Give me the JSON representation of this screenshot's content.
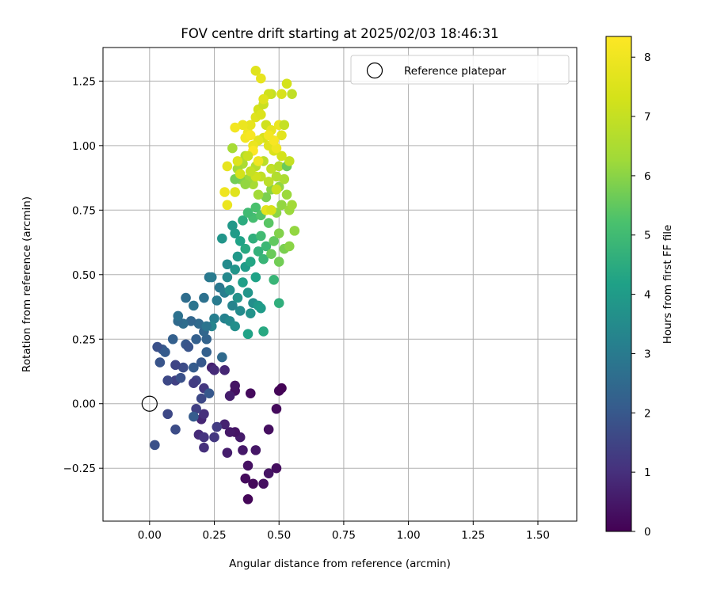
{
  "chart_data": {
    "type": "scatter",
    "title": "FOV centre drift starting at 2025/02/03 18:46:31",
    "xlabel": "Angular distance from reference (arcmin)",
    "ylabel": "Rotation from reference (arcmin)",
    "xlim": [
      -0.18,
      1.65
    ],
    "ylim": [
      -0.455,
      1.38
    ],
    "xticks": [
      0.0,
      0.25,
      0.5,
      0.75,
      1.0,
      1.25,
      1.5
    ],
    "xtick_labels": [
      "0.00",
      "0.25",
      "0.50",
      "0.75",
      "1.00",
      "1.25",
      "1.50"
    ],
    "yticks": [
      -0.25,
      0.0,
      0.25,
      0.5,
      0.75,
      1.0,
      1.25
    ],
    "ytick_labels": [
      "−0.25",
      "0.00",
      "0.25",
      "0.50",
      "0.75",
      "1.00",
      "1.25"
    ],
    "grid": true,
    "legend": {
      "position": "top-right",
      "entries": [
        {
          "label": "Reference platepar",
          "marker": "open-circle",
          "color": "#000000"
        }
      ]
    },
    "reference_point": {
      "x": 0.0,
      "y": 0.0
    },
    "colorbar": {
      "label": "Hours from first FF file",
      "colormap": "viridis",
      "range": [
        0,
        8.35
      ],
      "ticks": [
        0,
        1,
        2,
        3,
        4,
        5,
        6,
        7,
        8
      ],
      "tick_labels": [
        "0",
        "1",
        "2",
        "3",
        "4",
        "5",
        "6",
        "7",
        "8"
      ]
    },
    "series": [
      {
        "value_fields": [
          "x",
          "y",
          "hours"
        ],
        "points": [
          [
            0.38,
            -0.37,
            0.1
          ],
          [
            0.37,
            -0.29,
            0.2
          ],
          [
            0.4,
            -0.31,
            0.15
          ],
          [
            0.44,
            -0.31,
            0.3
          ],
          [
            0.46,
            -0.27,
            0.4
          ],
          [
            0.49,
            -0.25,
            0.25
          ],
          [
            0.38,
            -0.24,
            0.35
          ],
          [
            0.36,
            -0.18,
            0.5
          ],
          [
            0.41,
            -0.18,
            0.45
          ],
          [
            0.3,
            -0.19,
            0.6
          ],
          [
            0.35,
            -0.13,
            0.55
          ],
          [
            0.33,
            -0.11,
            0.4
          ],
          [
            0.31,
            -0.11,
            0.5
          ],
          [
            0.29,
            -0.08,
            0.7
          ],
          [
            0.46,
            -0.1,
            0.3
          ],
          [
            0.49,
            -0.02,
            0.2
          ],
          [
            0.5,
            0.05,
            0.1
          ],
          [
            0.51,
            0.06,
            0.05
          ],
          [
            0.39,
            0.04,
            0.2
          ],
          [
            0.33,
            0.05,
            0.3
          ],
          [
            0.33,
            0.07,
            0.4
          ],
          [
            0.31,
            0.03,
            0.6
          ],
          [
            0.29,
            0.13,
            0.8
          ],
          [
            0.24,
            0.14,
            0.7
          ],
          [
            0.25,
            0.13,
            0.9
          ],
          [
            0.2,
            -0.06,
            0.8
          ],
          [
            0.21,
            -0.04,
            1.0
          ],
          [
            0.19,
            -0.12,
            0.9
          ],
          [
            0.21,
            -0.13,
            1.1
          ],
          [
            0.21,
            -0.17,
            1.0
          ],
          [
            0.25,
            -0.13,
            1.2
          ],
          [
            0.26,
            -0.09,
            1.3
          ],
          [
            0.18,
            -0.02,
            1.4
          ],
          [
            0.2,
            0.02,
            1.6
          ],
          [
            0.21,
            0.06,
            1.2
          ],
          [
            0.18,
            0.09,
            1.5
          ],
          [
            0.17,
            0.08,
            1.3
          ],
          [
            0.1,
            0.09,
            1.4
          ],
          [
            0.07,
            0.09,
            1.6
          ],
          [
            0.12,
            0.1,
            1.8
          ],
          [
            0.13,
            0.14,
            1.7
          ],
          [
            0.1,
            0.15,
            1.5
          ],
          [
            0.04,
            0.16,
            1.9
          ],
          [
            0.05,
            0.21,
            2.0
          ],
          [
            0.03,
            0.22,
            1.8
          ],
          [
            0.06,
            0.2,
            2.1
          ],
          [
            0.09,
            0.25,
            2.2
          ],
          [
            0.14,
            0.23,
            2.0
          ],
          [
            0.15,
            0.22,
            1.9
          ],
          [
            0.17,
            0.14,
            2.1
          ],
          [
            0.2,
            0.16,
            2.0
          ],
          [
            0.22,
            0.2,
            2.2
          ],
          [
            0.22,
            0.25,
            2.3
          ],
          [
            0.21,
            0.28,
            2.4
          ],
          [
            0.18,
            0.25,
            2.2
          ],
          [
            0.19,
            0.31,
            2.5
          ],
          [
            0.16,
            0.32,
            2.4
          ],
          [
            0.13,
            0.31,
            2.6
          ],
          [
            0.11,
            0.32,
            2.5
          ],
          [
            0.11,
            0.34,
            2.7
          ],
          [
            0.14,
            0.41,
            2.6
          ],
          [
            0.17,
            0.38,
            2.8
          ],
          [
            0.21,
            0.41,
            2.7
          ],
          [
            0.23,
            0.49,
            2.9
          ],
          [
            0.24,
            0.49,
            3.0
          ],
          [
            0.27,
            0.45,
            2.9
          ],
          [
            0.29,
            0.43,
            3.1
          ],
          [
            0.26,
            0.4,
            3.0
          ],
          [
            0.29,
            0.33,
            3.2
          ],
          [
            0.25,
            0.33,
            3.1
          ],
          [
            0.24,
            0.3,
            3.3
          ],
          [
            0.22,
            0.3,
            2.8
          ],
          [
            0.28,
            0.18,
            2.5
          ],
          [
            0.23,
            0.04,
            2.0
          ],
          [
            0.07,
            -0.04,
            1.6
          ],
          [
            0.1,
            -0.1,
            1.7
          ],
          [
            0.02,
            -0.16,
            1.8
          ],
          [
            0.17,
            -0.05,
            2.1
          ],
          [
            0.31,
            0.32,
            3.4
          ],
          [
            0.33,
            0.3,
            3.6
          ],
          [
            0.35,
            0.36,
            3.5
          ],
          [
            0.32,
            0.38,
            3.3
          ],
          [
            0.34,
            0.41,
            3.7
          ],
          [
            0.31,
            0.44,
            3.6
          ],
          [
            0.3,
            0.49,
            3.4
          ],
          [
            0.33,
            0.52,
            3.8
          ],
          [
            0.3,
            0.54,
            3.5
          ],
          [
            0.34,
            0.57,
            3.9
          ],
          [
            0.37,
            0.53,
            4.0
          ],
          [
            0.36,
            0.47,
            4.1
          ],
          [
            0.38,
            0.43,
            3.8
          ],
          [
            0.4,
            0.39,
            3.6
          ],
          [
            0.39,
            0.35,
            3.7
          ],
          [
            0.42,
            0.38,
            3.9
          ],
          [
            0.43,
            0.37,
            4.0
          ],
          [
            0.38,
            0.27,
            4.2
          ],
          [
            0.44,
            0.28,
            4.4
          ],
          [
            0.5,
            0.39,
            4.6
          ],
          [
            0.48,
            0.48,
            4.8
          ],
          [
            0.41,
            0.49,
            4.2
          ],
          [
            0.39,
            0.55,
            4.3
          ],
          [
            0.37,
            0.6,
            4.4
          ],
          [
            0.35,
            0.63,
            4.2
          ],
          [
            0.33,
            0.66,
            4.0
          ],
          [
            0.32,
            0.69,
            3.9
          ],
          [
            0.28,
            0.64,
            3.8
          ],
          [
            0.36,
            0.71,
            4.5
          ],
          [
            0.4,
            0.64,
            4.6
          ],
          [
            0.42,
            0.59,
            4.7
          ],
          [
            0.44,
            0.56,
            4.8
          ],
          [
            0.45,
            0.61,
            4.9
          ],
          [
            0.43,
            0.65,
            5.0
          ],
          [
            0.4,
            0.72,
            5.1
          ],
          [
            0.38,
            0.74,
            5.0
          ],
          [
            0.41,
            0.76,
            5.2
          ],
          [
            0.43,
            0.73,
            5.3
          ],
          [
            0.46,
            0.7,
            5.4
          ],
          [
            0.48,
            0.63,
            5.5
          ],
          [
            0.47,
            0.58,
            5.6
          ],
          [
            0.5,
            0.55,
            5.7
          ],
          [
            0.52,
            0.6,
            5.8
          ],
          [
            0.54,
            0.61,
            6.0
          ],
          [
            0.5,
            0.66,
            5.9
          ],
          [
            0.49,
            0.74,
            6.0
          ],
          [
            0.51,
            0.77,
            6.1
          ],
          [
            0.54,
            0.75,
            6.2
          ],
          [
            0.55,
            0.77,
            6.3
          ],
          [
            0.56,
            0.67,
            6.1
          ],
          [
            0.53,
            0.81,
            6.2
          ],
          [
            0.5,
            0.84,
            6.1
          ],
          [
            0.47,
            0.83,
            6.0
          ],
          [
            0.45,
            0.8,
            5.8
          ],
          [
            0.42,
            0.81,
            6.3
          ],
          [
            0.4,
            0.85,
            6.4
          ],
          [
            0.38,
            0.87,
            6.2
          ],
          [
            0.36,
            0.93,
            6.5
          ],
          [
            0.34,
            0.91,
            6.3
          ],
          [
            0.35,
            0.87,
            5.9
          ],
          [
            0.33,
            0.87,
            5.7
          ],
          [
            0.37,
            0.96,
            6.6
          ],
          [
            0.32,
            0.99,
            6.4
          ],
          [
            0.41,
            0.92,
            6.7
          ],
          [
            0.44,
            0.94,
            6.8
          ],
          [
            0.47,
            0.91,
            6.9
          ],
          [
            0.5,
            0.92,
            6.7
          ],
          [
            0.53,
            0.92,
            5.6
          ],
          [
            0.54,
            0.94,
            7.0
          ],
          [
            0.52,
            0.87,
            6.5
          ],
          [
            0.49,
            0.88,
            6.6
          ],
          [
            0.46,
            0.86,
            6.8
          ],
          [
            0.43,
            0.88,
            6.9
          ],
          [
            0.41,
            0.88,
            7.2
          ],
          [
            0.39,
            0.9,
            7.0
          ],
          [
            0.37,
            0.85,
            6.1
          ],
          [
            0.35,
            0.89,
            7.3
          ],
          [
            0.34,
            0.94,
            7.5
          ],
          [
            0.3,
            0.92,
            7.8
          ],
          [
            0.33,
            0.82,
            7.6
          ],
          [
            0.3,
            0.77,
            7.9
          ],
          [
            0.29,
            0.82,
            8.0
          ],
          [
            0.45,
            0.75,
            7.7
          ],
          [
            0.47,
            0.75,
            7.4
          ],
          [
            0.49,
            0.83,
            7.1
          ],
          [
            0.51,
            0.96,
            7.3
          ],
          [
            0.48,
            0.98,
            7.5
          ],
          [
            0.46,
            1.0,
            7.6
          ],
          [
            0.44,
            1.03,
            7.4
          ],
          [
            0.42,
            1.02,
            7.7
          ],
          [
            0.4,
            1.0,
            7.9
          ],
          [
            0.38,
            1.05,
            8.0
          ],
          [
            0.37,
            1.03,
            8.1
          ],
          [
            0.39,
            1.08,
            7.8
          ],
          [
            0.36,
            1.08,
            7.9
          ],
          [
            0.33,
            1.07,
            8.1
          ],
          [
            0.41,
            1.11,
            7.6
          ],
          [
            0.42,
            1.14,
            7.3
          ],
          [
            0.44,
            1.16,
            7.1
          ],
          [
            0.43,
            1.12,
            7.5
          ],
          [
            0.45,
            1.08,
            7.2
          ],
          [
            0.47,
            1.06,
            7.8
          ],
          [
            0.5,
            1.08,
            7.9
          ],
          [
            0.52,
            1.08,
            7.0
          ],
          [
            0.51,
            1.04,
            7.7
          ],
          [
            0.49,
            0.99,
            8.0
          ],
          [
            0.48,
            1.02,
            8.2
          ],
          [
            0.46,
            1.04,
            8.1
          ],
          [
            0.41,
            1.29,
            7.6
          ],
          [
            0.43,
            1.26,
            7.8
          ],
          [
            0.47,
            1.2,
            7.0
          ],
          [
            0.46,
            1.2,
            7.2
          ],
          [
            0.51,
            1.2,
            7.4
          ],
          [
            0.53,
            1.24,
            7.3
          ],
          [
            0.55,
            1.2,
            6.9
          ],
          [
            0.44,
            1.18,
            7.6
          ],
          [
            0.4,
            0.98,
            8.3
          ],
          [
            0.39,
            1.04,
            8.2
          ],
          [
            0.42,
            0.94,
            8.0
          ],
          [
            0.38,
            0.96,
            7.1
          ]
        ]
      }
    ]
  }
}
